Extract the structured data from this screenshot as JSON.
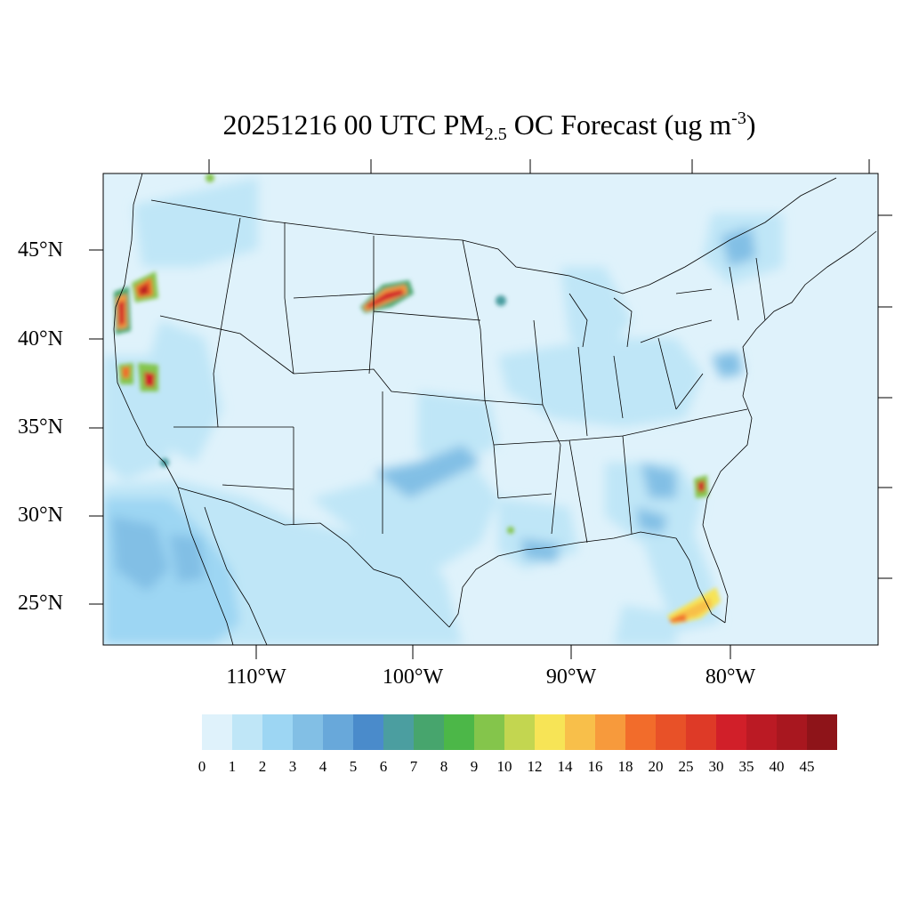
{
  "title": {
    "main": "20251216 00 UTC PM",
    "sub": "2.5",
    "mid": " OC Forecast (ug m",
    "sup": "-3",
    "end": ")"
  },
  "lat_labels": [
    "45°N",
    "40°N",
    "35°N",
    "30°N",
    "25°N"
  ],
  "lon_labels": [
    "110°W",
    "100°W",
    "90°W",
    "80°W"
  ],
  "colorbar": {
    "labels": [
      "0",
      "1",
      "2",
      "3",
      "4",
      "5",
      "6",
      "7",
      "8",
      "9",
      "10",
      "12",
      "14",
      "16",
      "18",
      "20",
      "25",
      "30",
      "35",
      "40",
      "45"
    ],
    "colors": [
      "#dff2fb",
      "#bfe6f7",
      "#9dd6f3",
      "#82bfe5",
      "#68a8da",
      "#4a8bcb",
      "#4b9ea0",
      "#47a56d",
      "#4cb748",
      "#84c54b",
      "#c3d650",
      "#f7e456",
      "#f8bf4a",
      "#f79a3c",
      "#f26c2b",
      "#e85128",
      "#de3a27",
      "#d11f29",
      "#bb1a24",
      "#a8171f",
      "#8e1419"
    ]
  },
  "map": {
    "background_color": "#dff2fb",
    "region": "Contiguous United States"
  }
}
